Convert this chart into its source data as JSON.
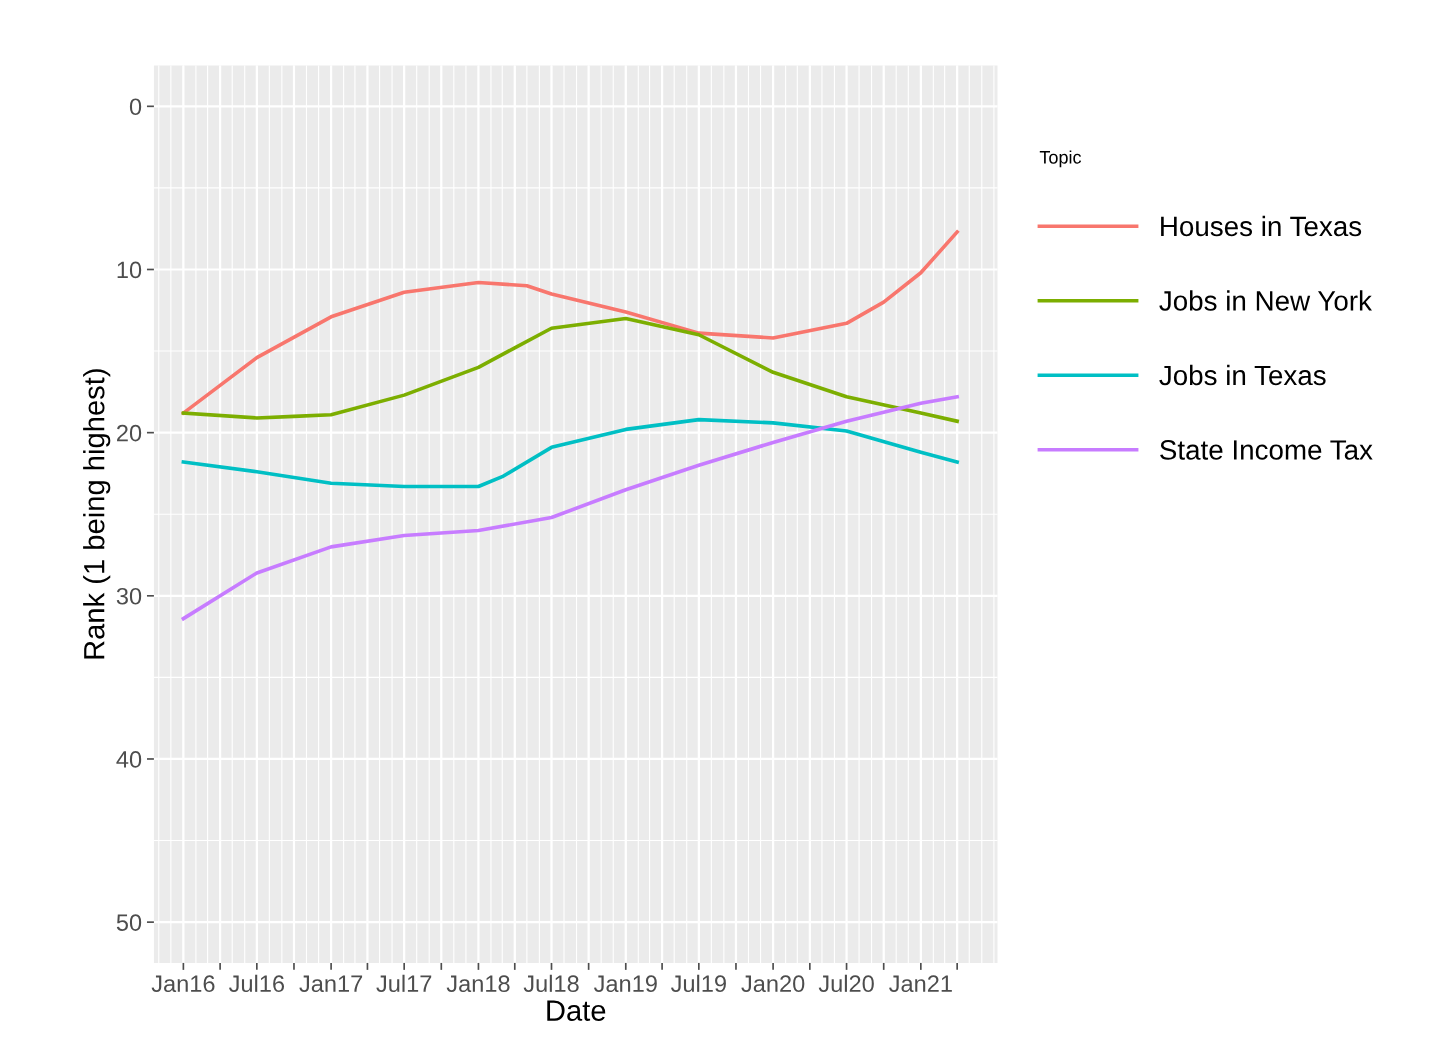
{
  "chart_data": {
    "type": "line",
    "xlabel": "Date",
    "ylabel": "Rank (1 being highest)",
    "legend_title": "Topic",
    "xlim": [
      "2015-10-20",
      "2021-07-10"
    ],
    "xticks": [
      {
        "value": "2016-01-01",
        "label": "Jan16"
      },
      {
        "value": "2016-04-01",
        "label": null
      },
      {
        "value": "2016-07-01",
        "label": "Jul16"
      },
      {
        "value": "2016-10-01",
        "label": null
      },
      {
        "value": "2017-01-01",
        "label": "Jan17"
      },
      {
        "value": "2017-04-01",
        "label": null
      },
      {
        "value": "2017-07-01",
        "label": "Jul17"
      },
      {
        "value": "2017-10-01",
        "label": null
      },
      {
        "value": "2018-01-01",
        "label": "Jan18"
      },
      {
        "value": "2018-04-01",
        "label": null
      },
      {
        "value": "2018-07-01",
        "label": "Jul18"
      },
      {
        "value": "2018-10-01",
        "label": null
      },
      {
        "value": "2019-01-01",
        "label": "Jan19"
      },
      {
        "value": "2019-04-01",
        "label": null
      },
      {
        "value": "2019-07-01",
        "label": "Jul19"
      },
      {
        "value": "2019-10-01",
        "label": null
      },
      {
        "value": "2020-01-01",
        "label": "Jan20"
      },
      {
        "value": "2020-04-01",
        "label": null
      },
      {
        "value": "2020-07-01",
        "label": "Jul20"
      },
      {
        "value": "2020-10-01",
        "label": null
      },
      {
        "value": "2021-01-01",
        "label": "Jan21"
      },
      {
        "value": "2021-04-01",
        "label": null
      }
    ],
    "ylim": [
      52.5,
      -2.5
    ],
    "yticks": [
      0,
      10,
      20,
      30,
      40,
      50
    ],
    "grid": true,
    "legend": "right",
    "marker": "none",
    "line_style": "solid",
    "series": [
      {
        "name": "Houses in Texas",
        "color": "#f8766d",
        "x": [
          "2016-01",
          "2016-07",
          "2017-01",
          "2017-07",
          "2018-01",
          "2018-05",
          "2018-07",
          "2019-01",
          "2019-07",
          "2020-01",
          "2020-07",
          "2020-10",
          "2021-01",
          "2021-04"
        ],
        "values": [
          18.8,
          15.4,
          12.9,
          11.4,
          10.8,
          11.0,
          11.5,
          12.6,
          13.9,
          14.2,
          13.3,
          12.0,
          10.2,
          7.7
        ]
      },
      {
        "name": "Jobs in New York",
        "color": "#7cae00",
        "x": [
          "2016-01",
          "2016-07",
          "2016-10",
          "2017-01",
          "2017-07",
          "2018-01",
          "2018-04",
          "2018-07",
          "2019-01",
          "2019-07",
          "2020-01",
          "2020-07",
          "2021-01",
          "2021-04"
        ],
        "values": [
          18.8,
          19.1,
          19.0,
          18.9,
          17.7,
          16.0,
          14.8,
          13.6,
          13.0,
          14.0,
          16.3,
          17.8,
          18.8,
          19.3
        ]
      },
      {
        "name": "Jobs in Texas",
        "color": "#00bfc4",
        "x": [
          "2016-01",
          "2016-07",
          "2017-01",
          "2017-07",
          "2018-01",
          "2018-03",
          "2018-07",
          "2019-01",
          "2019-07",
          "2020-01",
          "2020-07",
          "2021-01",
          "2021-04"
        ],
        "values": [
          21.8,
          22.4,
          23.1,
          23.3,
          23.3,
          22.7,
          20.9,
          19.8,
          19.2,
          19.4,
          19.9,
          21.2,
          21.8
        ]
      },
      {
        "name": "State Income Tax",
        "color": "#c77cff",
        "x": [
          "2016-01",
          "2016-07",
          "2017-01",
          "2017-07",
          "2018-01",
          "2018-07",
          "2019-01",
          "2019-07",
          "2020-01",
          "2020-07",
          "2021-01",
          "2021-04"
        ],
        "values": [
          31.4,
          28.6,
          27.0,
          26.3,
          26.0,
          25.2,
          23.5,
          22.0,
          20.6,
          19.3,
          18.2,
          17.8
        ]
      }
    ]
  }
}
